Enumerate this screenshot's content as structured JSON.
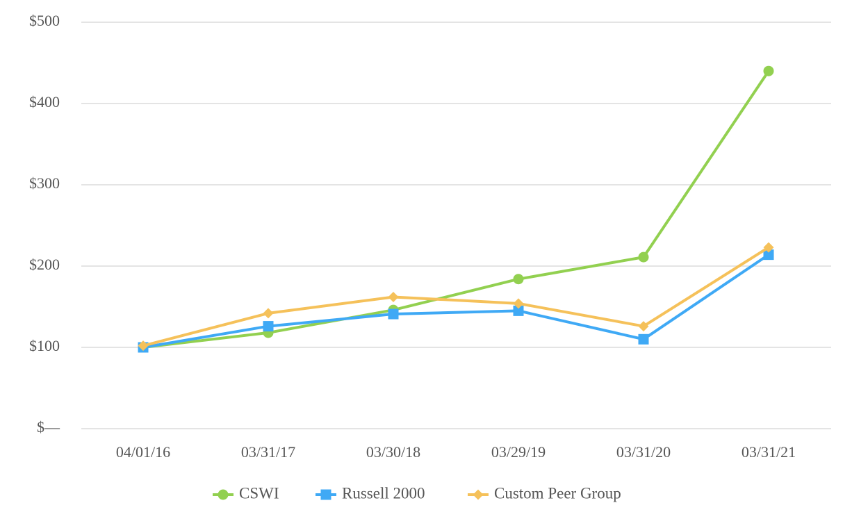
{
  "chart_data": {
    "type": "line",
    "title": "",
    "xlabel": "",
    "ylabel": "",
    "categories": [
      "04/01/16",
      "03/31/17",
      "03/30/18",
      "03/29/19",
      "03/31/20",
      "03/31/21"
    ],
    "y_ticks": [
      {
        "value": 0,
        "label": "$—"
      },
      {
        "value": 100,
        "label": "$100"
      },
      {
        "value": 200,
        "label": "$200"
      },
      {
        "value": 300,
        "label": "$300"
      },
      {
        "value": 400,
        "label": "$400"
      },
      {
        "value": 500,
        "label": "$500"
      }
    ],
    "ylim": [
      0,
      500
    ],
    "grid": true,
    "legend_position": "bottom-center",
    "series": [
      {
        "name": "CSWI",
        "color": "#92d050",
        "marker": "circle",
        "values": [
          100,
          118,
          146,
          184,
          211,
          440
        ]
      },
      {
        "name": "Russell 2000",
        "color": "#3fa9f5",
        "marker": "square",
        "values": [
          100,
          126,
          141,
          145,
          110,
          214
        ]
      },
      {
        "name": "Custom Peer Group",
        "color": "#f5c15a",
        "marker": "diamond",
        "values": [
          102,
          142,
          162,
          154,
          126,
          223
        ]
      }
    ]
  }
}
